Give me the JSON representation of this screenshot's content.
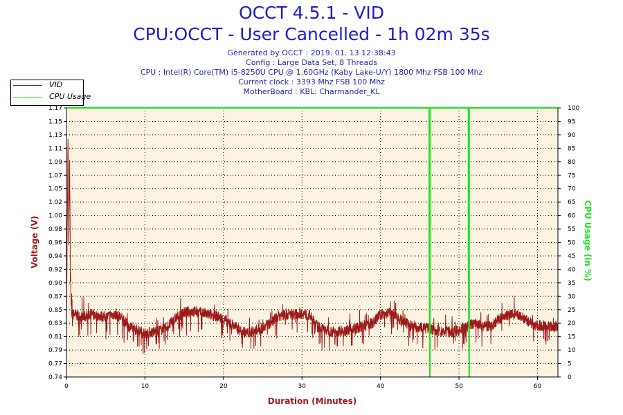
{
  "header": {
    "title": "OCCT 4.5.1 - VID",
    "subtitle": "CPU:OCCT - User Cancelled - 1h 02m 35s",
    "generated": "Generated by OCCT : 2019. 01. 13 12:38:43",
    "config": "Config : Large Data Set, 8 Threads",
    "cpu": "CPU : Intel(R) Core(TM) i5-8250U CPU @ 1.60GHz (Kaby Lake-U/Y) 1800 Mhz FSB 100 Mhz",
    "clock": "Current clock : 3393 Mhz FSB 100 Mhz",
    "motherboard": "MotherBoard : KBL: Charmander_KL"
  },
  "chart_data": {
    "type": "line",
    "title": "OCCT 4.5.1 - VID",
    "xlabel": "Duration (Minutes)",
    "ylabel": "Voltage (V)",
    "y2label": "CPU Usage (in %)",
    "xlim": [
      0,
      62.6
    ],
    "ylim": [
      0.74,
      1.17
    ],
    "y2lim": [
      0,
      100
    ],
    "xticks": [
      "0",
      "10",
      "20",
      "30",
      "40",
      "50",
      "60"
    ],
    "yticks": [
      "0.74",
      "0.77",
      "0.79",
      "0.81",
      "0.83",
      "0.85",
      "0.87",
      "0.90",
      "0.92",
      "0.94",
      "0.96",
      "0.98",
      "1.00",
      "1.02",
      "1.05",
      "1.07",
      "1.09",
      "1.11",
      "1.13",
      "1.15",
      "1.17"
    ],
    "y2ticks": [
      "0",
      "5",
      "10",
      "15",
      "20",
      "25",
      "30",
      "35",
      "40",
      "45",
      "50",
      "55",
      "60",
      "65",
      "70",
      "75",
      "80",
      "85",
      "90",
      "95",
      "100"
    ],
    "grid": true,
    "legend_position": "top-left",
    "background_color": "#fdf3e3",
    "series": [
      {
        "name": "VID",
        "color": "#9b1a1a",
        "axis": "left",
        "x": [
          0,
          0.2,
          0.3,
          0.4,
          0.5,
          0.6,
          0.8,
          1,
          2,
          3,
          4,
          5,
          6,
          7,
          8,
          9,
          10,
          11,
          12,
          13,
          14,
          15,
          16,
          17,
          18,
          19,
          20,
          21,
          22,
          23,
          24,
          25,
          26,
          27,
          28,
          29,
          30,
          31,
          32,
          33,
          34,
          35,
          36,
          37,
          38,
          39,
          40,
          41,
          42,
          43,
          44,
          45,
          46,
          47,
          48,
          49,
          50,
          51,
          52,
          53,
          54,
          55,
          56,
          57,
          58,
          59,
          60,
          61,
          62,
          62.5
        ],
        "y": [
          0.84,
          1.12,
          0.95,
          1.08,
          0.9,
          0.85,
          0.84,
          0.84,
          0.835,
          0.84,
          0.838,
          0.836,
          0.84,
          0.835,
          0.82,
          0.815,
          0.81,
          0.812,
          0.815,
          0.822,
          0.835,
          0.843,
          0.845,
          0.843,
          0.84,
          0.838,
          0.832,
          0.825,
          0.815,
          0.81,
          0.814,
          0.818,
          0.826,
          0.838,
          0.84,
          0.84,
          0.842,
          0.838,
          0.82,
          0.815,
          0.812,
          0.814,
          0.815,
          0.818,
          0.822,
          0.826,
          0.84,
          0.842,
          0.838,
          0.826,
          0.822,
          0.82,
          0.818,
          0.815,
          0.812,
          0.812,
          0.814,
          0.82,
          0.826,
          0.822,
          0.82,
          0.832,
          0.838,
          0.84,
          0.836,
          0.826,
          0.822,
          0.822,
          0.82,
          0.82
        ]
      },
      {
        "name": "CPU Usage",
        "color": "#19e619",
        "axis": "right",
        "x": [
          0,
          46.2,
          46.2,
          46.3,
          46.3,
          51.2,
          51.2,
          51.3,
          51.3,
          62.6
        ],
        "y": [
          100,
          100,
          50,
          0,
          100,
          100,
          50,
          0,
          100,
          100
        ]
      }
    ]
  }
}
